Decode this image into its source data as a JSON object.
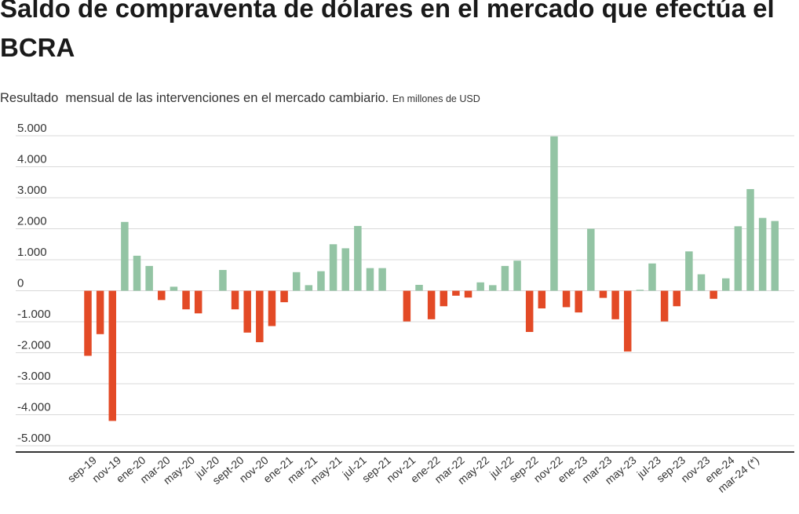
{
  "header": {
    "title": "Saldo de compraventa de dólares en el mercado que efectúa el BCRA",
    "subtitle": "Resultado  mensual de las intervenciones en el mercado cambiario.",
    "unit": "En millones de USD"
  },
  "colors": {
    "positive": "#93c4a4",
    "negative": "#e34a26",
    "grid": "#d9d9d9",
    "axis": "#333333"
  },
  "chart_data": {
    "type": "bar",
    "title": "Saldo de compraventa de dólares en el mercado que efectúa el BCRA",
    "subtitle": "Resultado  mensual de las intervenciones en el mercado cambiario.",
    "ylabel": "En millones de USD",
    "ylim": [
      -5000,
      5000
    ],
    "grid": true,
    "yticks": [
      5000,
      4000,
      3000,
      2000,
      1000,
      0,
      -1000,
      -2000,
      -3000,
      -4000,
      -5000
    ],
    "ytick_labels": [
      "5.000",
      "4.000",
      "3.000",
      "2.000",
      "1.000",
      "0",
      "-1.000",
      "-2.000",
      "-3.000",
      "-4.000",
      "-5.000"
    ],
    "x_tick_labels": [
      "sep-19",
      "nov-19",
      "ene-20",
      "mar-20",
      "may-20",
      "jul-20",
      "sept-20",
      "nov-20",
      "ene-21",
      "mar-21",
      "may-21",
      "jul-21",
      "sep-21",
      "nov-21",
      "ene-22",
      "mar-22",
      "may-22",
      "jul-22",
      "sep-22",
      "nov-22",
      "ene-23",
      "mar-23",
      "may-23",
      "jul-23",
      "sep-23",
      "nov-23",
      "ene-24",
      "mar-24 (*)"
    ],
    "values": [
      -2100,
      -1400,
      -4200,
      2220,
      1130,
      800,
      -300,
      130,
      -600,
      -730,
      0,
      670,
      -600,
      -1350,
      -1660,
      -1140,
      -370,
      600,
      180,
      630,
      1500,
      1370,
      2090,
      730,
      730,
      0,
      -990,
      190,
      -920,
      -500,
      -160,
      -220,
      270,
      180,
      800,
      970,
      -1330,
      -570,
      4980,
      -530,
      -700,
      2000,
      -230,
      -920,
      -1960,
      30,
      880,
      -990,
      -500,
      1270,
      530,
      -260,
      400,
      2080,
      3280,
      2350,
      2250
    ]
  }
}
